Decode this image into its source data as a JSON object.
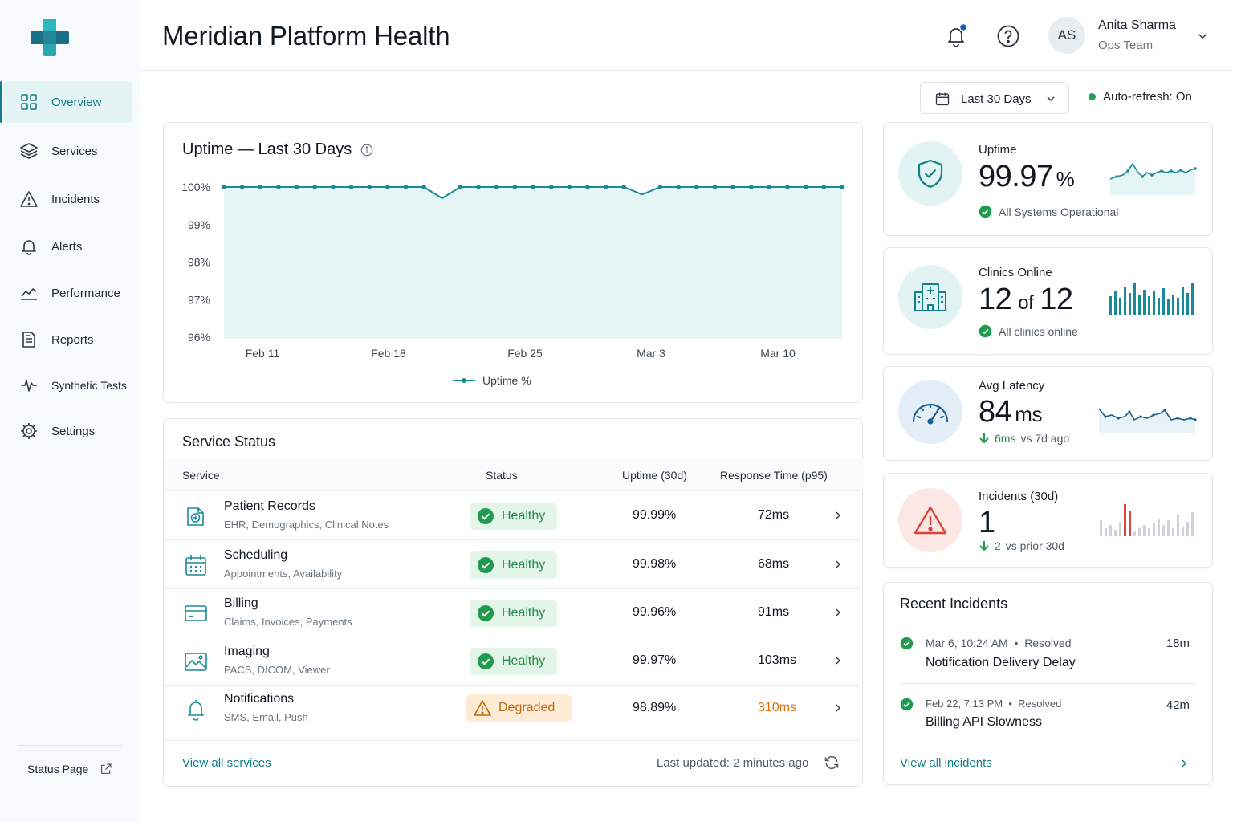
{
  "app": {
    "title": "Meridian Platform Health",
    "logo_icon": "medical-cross-logo"
  },
  "colors": {
    "accent": "#127f8a",
    "healthy": "#1f8a47",
    "warning": "#e0700c",
    "danger": "#d8453b"
  },
  "sidebar": {
    "items": [
      {
        "label": "Overview",
        "icon": "grid-icon",
        "active": true
      },
      {
        "label": "Services",
        "icon": "layers-icon"
      },
      {
        "label": "Incidents",
        "icon": "warning-icon"
      },
      {
        "label": "Alerts",
        "icon": "bell-icon"
      },
      {
        "label": "Performance",
        "icon": "trend-icon"
      },
      {
        "label": "Reports",
        "icon": "report-icon"
      },
      {
        "label": "Synthetic Tests",
        "icon": "pulse-icon"
      },
      {
        "label": "Settings",
        "icon": "gear-icon"
      }
    ],
    "status_page": "Status Page"
  },
  "header": {
    "user": {
      "initials": "AS",
      "name": "Anita Sharma",
      "team": "Ops Team"
    }
  },
  "filters": {
    "date_range": "Last 30 Days",
    "auto_refresh": "Auto-refresh: On"
  },
  "uptime_chart": {
    "title": "Uptime — Last 30 Days"
  },
  "chart_data": {
    "type": "area",
    "title": "Uptime — Last 30 Days",
    "ylim": [
      96,
      100
    ],
    "yticks": [
      "100%",
      "99%",
      "98%",
      "97%",
      "96%"
    ],
    "xticks": [
      "Feb 11",
      "Feb 18",
      "Feb 25",
      "Mar 3",
      "Mar 10"
    ],
    "legend": "bottom",
    "series": [
      {
        "name": "Uptime %",
        "values": [
          100,
          100,
          100,
          100,
          100,
          100,
          100,
          100,
          100,
          100,
          100,
          100,
          99.7,
          100,
          100,
          100,
          100,
          100,
          100,
          100,
          100,
          100,
          100,
          99.8,
          100,
          100,
          100,
          100,
          100,
          100,
          100,
          100,
          100,
          100,
          100
        ]
      }
    ]
  },
  "service_status": {
    "title": "Service Status",
    "columns": [
      "Service",
      "Status",
      "Uptime (30d)",
      "Response Time (p95)"
    ],
    "rows": [
      {
        "name": "Patient Records",
        "sub": "EHR, Demographics, Clinical Notes",
        "status": "Healthy",
        "uptime": "99.99%",
        "response": "72ms",
        "icon": "medical-folder-icon"
      },
      {
        "name": "Scheduling",
        "sub": "Appointments, Availability",
        "status": "Healthy",
        "uptime": "99.98%",
        "response": "68ms",
        "icon": "calendar-icon"
      },
      {
        "name": "Billing",
        "sub": "Claims, Invoices, Payments",
        "status": "Healthy",
        "uptime": "99.96%",
        "response": "91ms",
        "icon": "credit-card-icon"
      },
      {
        "name": "Imaging",
        "sub": "PACS, DICOM, Viewer",
        "status": "Healthy",
        "uptime": "99.97%",
        "response": "103ms",
        "icon": "image-icon"
      },
      {
        "name": "Notifications",
        "sub": "SMS, Email, Push",
        "status": "Degraded",
        "uptime": "98.89%",
        "response": "310ms",
        "icon": "bell-icon"
      }
    ],
    "footer_link": "View all services",
    "last_updated": "Last updated: 2 minutes ago"
  },
  "kpis": {
    "uptime": {
      "label": "Uptime",
      "value": "99.97",
      "unit": "%",
      "sub": "All Systems Operational",
      "icon": "shield-check-icon"
    },
    "clinics": {
      "label": "Clinics Online",
      "value": "12",
      "of": "of",
      "total": "12",
      "sub": "All clinics online",
      "icon": "hospital-icon"
    },
    "latency": {
      "label": "Avg Latency",
      "value": "84",
      "unit": "ms",
      "delta": "6ms",
      "delta_sub": "vs 7d ago",
      "icon": "speedometer-icon"
    },
    "incidents": {
      "label": "Incidents (30d)",
      "value": "1",
      "delta": "2",
      "delta_sub": "vs prior 30d",
      "icon": "alert-triangle-icon"
    }
  },
  "recent_incidents": {
    "title": "Recent Incidents",
    "items": [
      {
        "time": "Mar 6, 10:24 AM",
        "status": "Resolved",
        "name": "Notification Delivery Delay",
        "duration": "18m"
      },
      {
        "time": "Feb 22, 7:13 PM",
        "status": "Resolved",
        "name": "Billing API Slowness",
        "duration": "42m"
      }
    ],
    "link": "View all incidents"
  }
}
